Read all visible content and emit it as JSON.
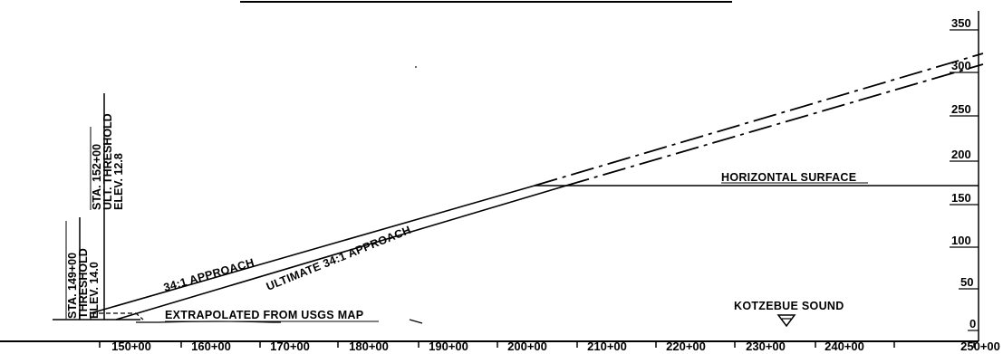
{
  "x_axis": {
    "ticks": [
      "150+00",
      "160+00",
      "170+00",
      "180+00",
      "190+00",
      "200+00",
      "210+00",
      "220+00",
      "230+00",
      "240+00",
      "250+00"
    ]
  },
  "y_axis": {
    "ticks": [
      "0",
      "50",
      "100",
      "150",
      "200",
      "250",
      "300",
      "350"
    ]
  },
  "annotations": {
    "threshold": [
      "STA. 149+00",
      "THRESHOLD",
      "ELEV. 14.0"
    ],
    "ultimate_threshold": [
      "STA. 152+00",
      "ULT. THRESHOLD",
      "ELEV. 12.8"
    ],
    "approach": "34:1 APPROACH",
    "ultimate_approach": "ULTIMATE 34:1 APPROACH",
    "horizontal_surface": "HORIZONTAL SURFACE",
    "extrapolated": "EXTRAPOLATED FROM USGS MAP",
    "sound": "KOTZEBUE SOUND"
  }
}
